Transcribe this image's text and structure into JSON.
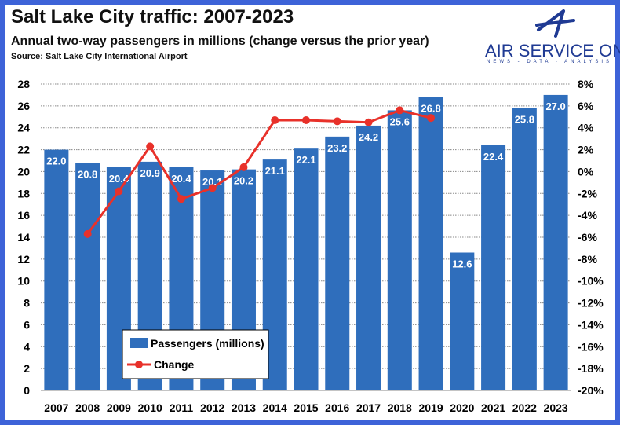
{
  "header": {
    "title": "Salt Lake City traffic: 2007-2023",
    "subtitle": "Annual two-way passengers in millions (change versus the prior year)",
    "source": "Source: Salt Lake City International Airport"
  },
  "logo": {
    "name": "AIR SERVICE ONE",
    "tagline": "NEWS - DATA - ANALYSIS",
    "color": "#1f3a93"
  },
  "chart_data": {
    "type": "bar+line",
    "categories": [
      "2007",
      "2008",
      "2009",
      "2010",
      "2011",
      "2012",
      "2013",
      "2014",
      "2015",
      "2016",
      "2017",
      "2018",
      "2019",
      "2020",
      "2021",
      "2022",
      "2023"
    ],
    "series": [
      {
        "name": "Passengers (millions)",
        "type": "bar",
        "axis": "left",
        "color": "#2f6ebc",
        "values": [
          22.0,
          20.8,
          20.4,
          20.9,
          20.4,
          20.1,
          20.2,
          21.1,
          22.1,
          23.2,
          24.2,
          25.6,
          26.8,
          12.6,
          22.4,
          25.8,
          27.0
        ],
        "labels": [
          "22.0",
          "20.8",
          "20.4",
          "20.9",
          "20.4",
          "20.1",
          "20.2",
          "21.1",
          "22.1",
          "23.2",
          "24.2",
          "25.6",
          "26.8",
          "12.6",
          "22.4",
          "25.8",
          "27.0"
        ]
      },
      {
        "name": "Change",
        "type": "line",
        "axis": "right",
        "color": "#e8312a",
        "values": [
          null,
          -5.7,
          -1.8,
          2.3,
          -2.5,
          -1.5,
          0.4,
          4.7,
          4.7,
          4.6,
          4.5,
          5.6,
          4.9,
          null,
          null,
          null,
          null
        ]
      }
    ],
    "ylim_left": [
      0,
      28
    ],
    "yticks_left": [
      "0",
      "2",
      "4",
      "6",
      "8",
      "10",
      "12",
      "14",
      "16",
      "18",
      "20",
      "22",
      "24",
      "26",
      "28"
    ],
    "ylim_right": [
      -20,
      8
    ],
    "yticks_right": [
      "-20%",
      "-18%",
      "-16%",
      "-14%",
      "-12%",
      "-10%",
      "-8%",
      "-6%",
      "-4%",
      "-2%",
      "0%",
      "2%",
      "4%",
      "6%",
      "8%"
    ],
    "grid": true,
    "legend": "bottom-left"
  }
}
